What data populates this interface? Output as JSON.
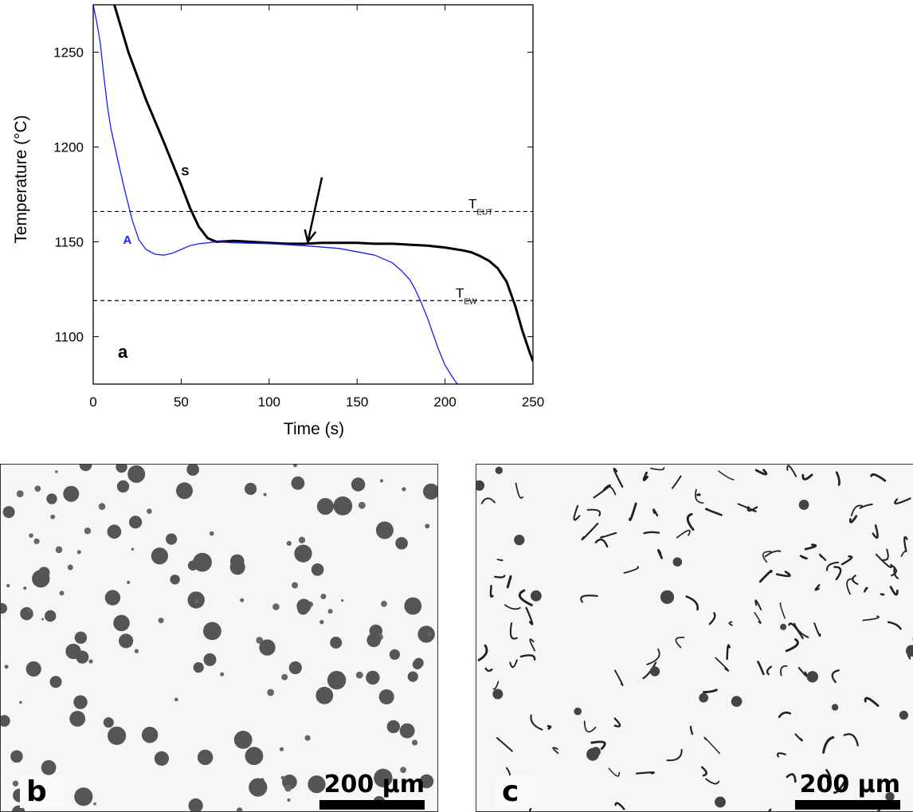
{
  "chart_data": {
    "type": "line",
    "xlabel": "Time (s)",
    "ylabel": "Temperature (°C)",
    "xlim": [
      0,
      250
    ],
    "ylim": [
      1075,
      1275
    ],
    "xticks": [
      "0",
      "50",
      "100",
      "150",
      "200",
      "250"
    ],
    "yticks": [
      "1100",
      "1150",
      "1200",
      "1250"
    ],
    "panel_label": "a",
    "series": [
      {
        "name": "S",
        "color": "#000000",
        "x": [
          12,
          20,
          30,
          40,
          50,
          55,
          60,
          65,
          70,
          80,
          90,
          100,
          110,
          120,
          130,
          140,
          150,
          160,
          170,
          180,
          190,
          200,
          210,
          215,
          220,
          225,
          230,
          235,
          240,
          244,
          248,
          250
        ],
        "y": [
          1275,
          1250,
          1225,
          1203,
          1180,
          1168,
          1158,
          1152,
          1150,
          1150.5,
          1150,
          1149.5,
          1149,
          1149,
          1149.5,
          1149.5,
          1149.5,
          1149,
          1149,
          1148.5,
          1148,
          1147,
          1145.5,
          1144.5,
          1142.5,
          1140,
          1136,
          1129,
          1116,
          1103,
          1092,
          1087
        ]
      },
      {
        "name": "A",
        "color": "#1a1aff",
        "x": [
          0,
          2,
          4,
          6,
          8,
          10,
          14,
          18,
          22,
          26,
          30,
          35,
          40,
          45,
          50,
          55,
          60,
          70,
          80,
          100,
          120,
          140,
          160,
          170,
          175,
          180,
          183,
          186,
          190,
          193,
          196,
          200,
          204,
          207
        ],
        "y": [
          1275,
          1266,
          1255,
          1238,
          1222,
          1210,
          1193,
          1177,
          1162,
          1151,
          1146,
          1143.5,
          1143,
          1144,
          1146,
          1148,
          1149,
          1150,
          1149.5,
          1149,
          1148,
          1146.5,
          1143,
          1139,
          1135,
          1130,
          1125,
          1119,
          1110,
          1102,
          1094,
          1085,
          1079,
          1075
        ]
      }
    ],
    "reference_lines": [
      {
        "label_main": "T",
        "label_sub": "EUT",
        "y": 1166
      },
      {
        "label_main": "T",
        "label_sub": "EW",
        "y": 1119
      }
    ],
    "annotations": [
      {
        "text": "S",
        "x": 50,
        "y": 1185,
        "color": "#000000"
      },
      {
        "text": "A",
        "x": 17,
        "y": 1149,
        "color": "#1a1aff"
      }
    ],
    "arrow": {
      "from_x": 130,
      "from_y": 1184,
      "to_x": 122,
      "to_y": 1150
    },
    "grid": false
  },
  "micrographs": [
    {
      "label": "b",
      "scale_text": "200 µm"
    },
    {
      "label": "c",
      "scale_text": "200 µm"
    }
  ]
}
